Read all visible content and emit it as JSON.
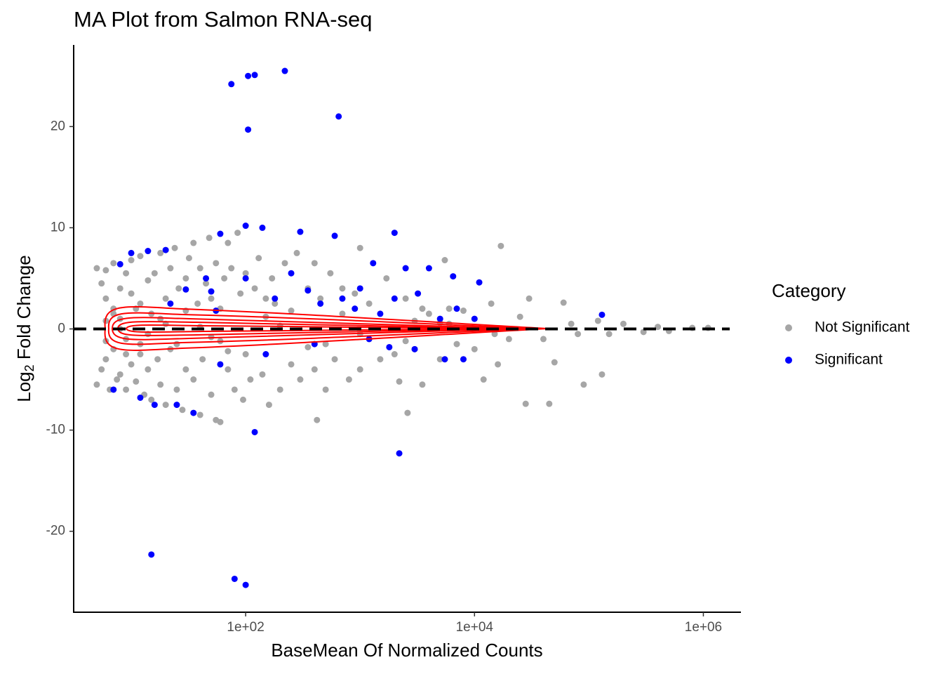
{
  "chart_data": {
    "type": "scatter",
    "title": "MA Plot from Salmon RNA-seq",
    "x_label": "BaseMean Of Normalized Counts",
    "y_label": {
      "base": "Log",
      "subscript": "2",
      "rest": " Fold Change"
    },
    "legend_title": "Category",
    "legend_position": "right",
    "x_log": true,
    "xlim": [
      3.14,
      2100000
    ],
    "ylim": [
      -28,
      28
    ],
    "xticks": [
      {
        "value": 100,
        "label": "1e+02"
      },
      {
        "value": 10000,
        "label": "1e+04"
      },
      {
        "value": 1000000,
        "label": "1e+06"
      }
    ],
    "yticks": [
      -20,
      -10,
      0,
      10,
      20
    ],
    "hline": 0,
    "series": [
      {
        "name": "Not Significant",
        "color": "#a6a6a6",
        "x": [
          5,
          5,
          5.5,
          5.5,
          6,
          6,
          6,
          6.5,
          7,
          7,
          7,
          7.5,
          8,
          8,
          8,
          9,
          9,
          9,
          10,
          10,
          10,
          11,
          12,
          12,
          12,
          13,
          14,
          14,
          15,
          15,
          16,
          17,
          18,
          18,
          20,
          20,
          22,
          22,
          24,
          25,
          26,
          28,
          30,
          30,
          32,
          35,
          35,
          38,
          40,
          40,
          42,
          45,
          48,
          50,
          50,
          55,
          55,
          60,
          60,
          65,
          70,
          70,
          75,
          80,
          85,
          90,
          95,
          100,
          110,
          120,
          130,
          140,
          150,
          160,
          170,
          180,
          200,
          220,
          250,
          280,
          300,
          350,
          400,
          400,
          420,
          450,
          500,
          550,
          600,
          700,
          800,
          900,
          1000,
          1000,
          1200,
          1500,
          1700,
          2000,
          2200,
          2500,
          2600,
          3000,
          3500,
          3500,
          4000,
          5000,
          5500,
          6000,
          7000,
          8000,
          10000,
          12000,
          14000,
          16000,
          17000,
          20000,
          25000,
          28000,
          30000,
          40000,
          45000,
          50000,
          60000,
          70000,
          80000,
          90000,
          120000,
          130000,
          150000,
          200000,
          300000,
          400000,
          500000,
          800000,
          1100000,
          8,
          20,
          50,
          200,
          1000,
          5000,
          12,
          30,
          70,
          150,
          350,
          700,
          2500,
          6000,
          15000,
          6,
          6,
          7,
          9,
          11,
          14,
          18,
          25,
          40,
          60,
          100,
          250,
          500,
          3000
        ],
        "values": [
          6,
          -5.5,
          4.5,
          -4,
          3,
          -3,
          5.8,
          -6,
          2,
          -2,
          6.5,
          -5,
          4,
          -4.5,
          1,
          -1,
          5.5,
          -6,
          3.5,
          -3.5,
          6.8,
          -5.2,
          2.5,
          -2.5,
          7.2,
          -6.5,
          4.8,
          -4,
          1.5,
          -7,
          5.5,
          -3,
          7.5,
          -5.5,
          3,
          -7.5,
          6,
          -2,
          8,
          -6,
          4,
          -8,
          5,
          -4,
          7,
          -5,
          8.5,
          2.5,
          -8.5,
          6,
          -3,
          4.5,
          9,
          -6.5,
          3,
          -9,
          6.5,
          -9.2,
          2,
          5,
          8.5,
          -4,
          6,
          -6,
          9.5,
          3.5,
          -7,
          5.5,
          -5,
          4,
          7,
          -4.5,
          3,
          -7.5,
          5,
          2.5,
          -6,
          6.5,
          -3.5,
          7.5,
          -5,
          4,
          -4,
          6.5,
          -9,
          3,
          -6,
          5.5,
          -3,
          4,
          -5,
          3.5,
          8,
          -4,
          2.5,
          -3,
          5,
          -2.5,
          -5.2,
          3,
          -8.3,
          -2,
          2,
          -5.5,
          1.5,
          -3,
          6.8,
          2,
          -1.5,
          1.8,
          -2,
          -5,
          2.5,
          -3.5,
          8.2,
          -1,
          1.2,
          -7.4,
          3,
          -1,
          -7.4,
          -3.3,
          2.6,
          0.5,
          -0.5,
          -5.5,
          0.8,
          -4.5,
          -0.5,
          0.5,
          -0.3,
          0.2,
          -0.2,
          0.1,
          0.1,
          0,
          0.5,
          -0.8,
          0.3,
          -0.5,
          0.6,
          -1.5,
          1.8,
          -2.2,
          1.2,
          -1.8,
          1.5,
          -1.2,
          0.5,
          -0.5,
          0.8,
          -1.2,
          1.5,
          -2.5,
          2,
          -0.5,
          1,
          -1.5,
          0.2,
          -1.2,
          -2.5,
          1.8,
          -1.5,
          0.8
        ]
      },
      {
        "name": "Significant",
        "color": "#0000ff",
        "x": [
          7,
          8,
          10,
          12,
          14,
          15,
          16,
          20,
          22,
          25,
          30,
          35,
          45,
          50,
          55,
          60,
          60,
          75,
          80,
          100,
          100,
          100,
          105,
          105,
          120,
          120,
          140,
          150,
          180,
          220,
          250,
          300,
          350,
          400,
          450,
          600,
          650,
          700,
          900,
          1000,
          1200,
          1300,
          1500,
          1800,
          2000,
          2000,
          2200,
          2500,
          3000,
          3200,
          4000,
          5000,
          5500,
          6500,
          7000,
          8000,
          10000,
          11000,
          130000
        ],
        "values": [
          -6,
          6.4,
          7.5,
          -6.8,
          7.7,
          -22.3,
          -7.5,
          7.8,
          2.5,
          -7.5,
          3.9,
          -8.3,
          5,
          3.7,
          1.8,
          -3.5,
          9.4,
          24.2,
          -24.7,
          -25.3,
          10.2,
          5,
          25,
          19.7,
          25.1,
          -10.2,
          10,
          -2.5,
          3,
          25.5,
          5.5,
          9.6,
          3.8,
          -1.5,
          2.5,
          9.2,
          21,
          3,
          2,
          4,
          -1,
          6.5,
          1.5,
          -1.8,
          9.5,
          3,
          -12.3,
          6,
          -2,
          3.5,
          6,
          1,
          -3,
          5.2,
          2,
          -3,
          1,
          4.6,
          1.4
        ]
      }
    ]
  }
}
